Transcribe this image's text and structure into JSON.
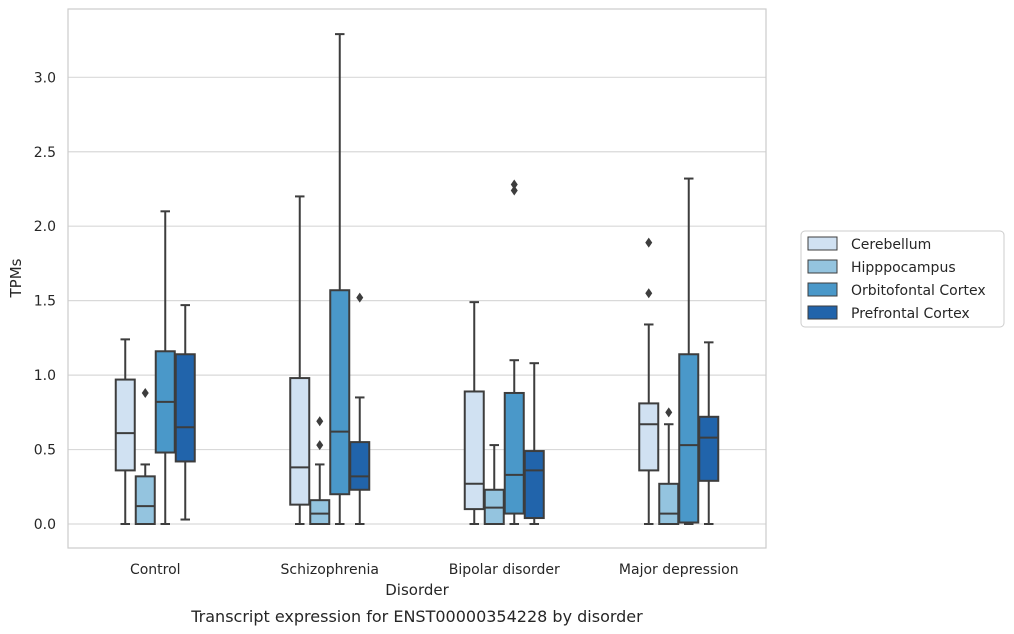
{
  "chart_data": {
    "type": "box",
    "title": "",
    "caption": "Transcript expression for ENST00000354228 by disorder",
    "xlabel": "Disorder",
    "ylabel": "TPMs",
    "ylim": [
      -0.16,
      3.46
    ],
    "yticks": [
      "0.0",
      "0.5",
      "1.0",
      "1.5",
      "2.0",
      "2.5",
      "3.0"
    ],
    "grid": "horizontal",
    "legend_position": "right",
    "categories": [
      "Control",
      "Schizophrenia",
      "Bipolar disorder",
      "Major depression"
    ],
    "series": [
      {
        "name": "Cerebellum",
        "color": "#d0e1f2",
        "boxes": [
          {
            "whislo": 0.0,
            "q1": 0.36,
            "med": 0.61,
            "q3": 0.97,
            "whishi": 1.24,
            "fliers": []
          },
          {
            "whislo": 0.0,
            "q1": 0.13,
            "med": 0.38,
            "q3": 0.98,
            "whishi": 2.2,
            "fliers": []
          },
          {
            "whislo": 0.0,
            "q1": 0.1,
            "med": 0.27,
            "q3": 0.89,
            "whishi": 1.49,
            "fliers": []
          },
          {
            "whislo": 0.0,
            "q1": 0.36,
            "med": 0.67,
            "q3": 0.81,
            "whishi": 1.34,
            "fliers": [
              1.55,
              1.89
            ]
          }
        ]
      },
      {
        "name": "Hipppocampus",
        "color": "#94c4df",
        "boxes": [
          {
            "whislo": 0.0,
            "q1": 0.0,
            "med": 0.12,
            "q3": 0.32,
            "whishi": 0.4,
            "fliers": [
              0.88
            ]
          },
          {
            "whislo": 0.0,
            "q1": 0.0,
            "med": 0.07,
            "q3": 0.16,
            "whishi": 0.4,
            "fliers": [
              0.53,
              0.69
            ]
          },
          {
            "whislo": 0.0,
            "q1": 0.0,
            "med": 0.11,
            "q3": 0.23,
            "whishi": 0.53,
            "fliers": []
          },
          {
            "whislo": 0.0,
            "q1": 0.0,
            "med": 0.07,
            "q3": 0.27,
            "whishi": 0.67,
            "fliers": [
              0.75
            ]
          }
        ]
      },
      {
        "name": "Orbitofontal Cortex",
        "color": "#4a98c9",
        "boxes": [
          {
            "whislo": 0.0,
            "q1": 0.48,
            "med": 0.82,
            "q3": 1.16,
            "whishi": 2.1,
            "fliers": []
          },
          {
            "whislo": 0.0,
            "q1": 0.2,
            "med": 0.62,
            "q3": 1.57,
            "whishi": 3.29,
            "fliers": []
          },
          {
            "whislo": 0.0,
            "q1": 0.07,
            "med": 0.33,
            "q3": 0.88,
            "whishi": 1.1,
            "fliers": [
              2.24,
              2.28
            ]
          },
          {
            "whislo": 0.0,
            "q1": 0.01,
            "med": 0.53,
            "q3": 1.14,
            "whishi": 2.32,
            "fliers": []
          }
        ]
      },
      {
        "name": "Prefrontal Cortex",
        "color": "#2164ab",
        "boxes": [
          {
            "whislo": 0.03,
            "q1": 0.42,
            "med": 0.65,
            "q3": 1.14,
            "whishi": 1.47,
            "fliers": []
          },
          {
            "whislo": 0.0,
            "q1": 0.23,
            "med": 0.32,
            "q3": 0.55,
            "whishi": 0.85,
            "fliers": [
              1.52
            ]
          },
          {
            "whislo": 0.0,
            "q1": 0.04,
            "med": 0.36,
            "q3": 0.49,
            "whishi": 1.08,
            "fliers": []
          },
          {
            "whislo": 0.0,
            "q1": 0.29,
            "med": 0.58,
            "q3": 0.72,
            "whishi": 1.22,
            "fliers": []
          }
        ]
      }
    ]
  }
}
